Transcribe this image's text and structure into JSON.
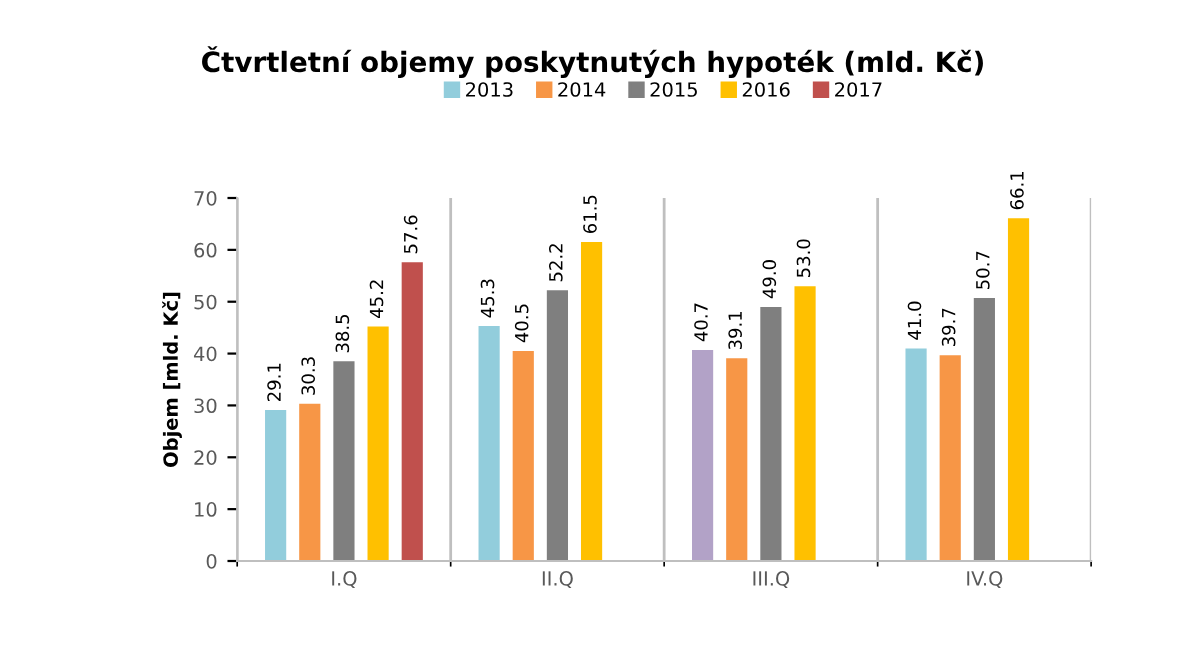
{
  "chart_data": {
    "type": "bar",
    "title": "Čtvrtletní objemy poskytnutých hypoték (mld. Kč)",
    "ylabel": "Objem [mld. Kč]",
    "categories": [
      "I.Q",
      "II.Q",
      "III.Q",
      "IV.Q"
    ],
    "series": [
      {
        "name": "2013",
        "color": "#92cddc",
        "colors": [
          "#92cddc",
          "#92cddc",
          "#b2a2c7",
          "#92cddc"
        ],
        "values": [
          29.1,
          45.3,
          40.7,
          41.0
        ],
        "value_labels": [
          "29.1",
          "45.3",
          "40.7",
          "41.0"
        ]
      },
      {
        "name": "2014",
        "color": "#f79646",
        "values": [
          30.3,
          40.5,
          39.1,
          39.7
        ],
        "value_labels": [
          "30.3",
          "40.5",
          "39.1",
          "39.7"
        ]
      },
      {
        "name": "2015",
        "color": "#7f7f7f",
        "values": [
          38.5,
          52.2,
          49.0,
          50.7
        ],
        "value_labels": [
          "38.5",
          "52.2",
          "49.0",
          "50.7"
        ]
      },
      {
        "name": "2016",
        "color": "#ffc000",
        "values": [
          45.2,
          61.5,
          53.0,
          66.1
        ],
        "value_labels": [
          "45.2",
          "61.5",
          "53.0",
          "66.1"
        ]
      },
      {
        "name": "2017",
        "color": "#c0504d",
        "values": [
          57.6,
          null,
          null,
          null
        ],
        "value_labels": [
          "57.6",
          null,
          null,
          null
        ]
      }
    ],
    "ylim": [
      0,
      70
    ],
    "yticks": [
      0,
      10,
      20,
      30,
      40,
      50,
      60,
      70
    ],
    "grid": "x",
    "legend": "top"
  }
}
